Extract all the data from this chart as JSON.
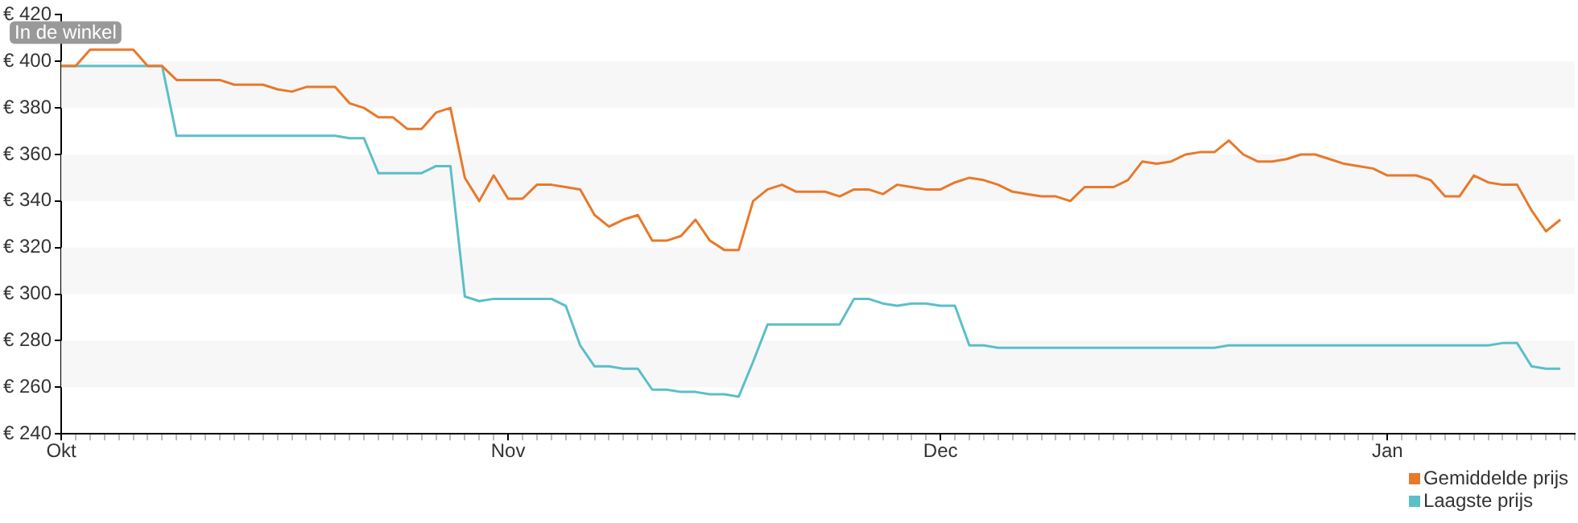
{
  "chart_data": {
    "type": "line",
    "annotations": [
      "In de winkel"
    ],
    "categories": [
      "Okt",
      null,
      null,
      null,
      null,
      null,
      null,
      null,
      null,
      null,
      null,
      null,
      null,
      null,
      null,
      null,
      null,
      null,
      null,
      null,
      null,
      null,
      null,
      null,
      null,
      null,
      null,
      null,
      null,
      null,
      null,
      "Nov",
      null,
      null,
      null,
      null,
      null,
      null,
      null,
      null,
      null,
      null,
      null,
      null,
      null,
      null,
      null,
      null,
      null,
      null,
      null,
      null,
      null,
      null,
      null,
      null,
      null,
      null,
      null,
      null,
      null,
      "Dec",
      null,
      null,
      null,
      null,
      null,
      null,
      null,
      null,
      null,
      null,
      null,
      null,
      null,
      null,
      null,
      null,
      null,
      null,
      null,
      null,
      null,
      null,
      null,
      null,
      null,
      null,
      null,
      null,
      null,
      null,
      "Jan",
      null,
      null,
      null,
      null,
      null,
      null,
      null,
      null,
      null,
      null,
      null,
      null,
      null
    ],
    "ylim": [
      240,
      420
    ],
    "yticks": [
      {
        "value": 240,
        "label": "€ 240"
      },
      {
        "value": 260,
        "label": "€ 260"
      },
      {
        "value": 280,
        "label": "€ 280"
      },
      {
        "value": 300,
        "label": "€ 300"
      },
      {
        "value": 320,
        "label": "€ 320"
      },
      {
        "value": 340,
        "label": "€ 340"
      },
      {
        "value": 360,
        "label": "€ 360"
      },
      {
        "value": 380,
        "label": "€ 380"
      },
      {
        "value": 400,
        "label": "€ 400"
      },
      {
        "value": 420,
        "label": "€ 420"
      }
    ],
    "legend": "bottom right",
    "marker": "none",
    "line_style": "solid",
    "series": [
      {
        "name": "Gemiddelde prijs",
        "color": "#e8792b",
        "values": [
          398,
          398,
          405,
          405,
          405,
          405,
          398,
          398,
          392,
          392,
          392,
          392,
          390,
          390,
          390,
          388,
          387,
          389,
          389,
          389,
          382,
          380,
          376,
          376,
          371,
          371,
          378,
          380,
          350,
          340,
          351,
          341,
          341,
          347,
          347,
          346,
          345,
          334,
          329,
          332,
          334,
          323,
          323,
          325,
          332,
          323,
          319,
          319,
          340,
          345,
          347,
          344,
          344,
          344,
          342,
          345,
          345,
          343,
          347,
          346,
          345,
          345,
          348,
          350,
          349,
          347,
          344,
          343,
          342,
          342,
          340,
          346,
          346,
          346,
          349,
          357,
          356,
          357,
          360,
          361,
          361,
          366,
          360,
          357,
          357,
          358,
          360,
          360,
          358,
          356,
          355,
          354,
          351,
          351,
          351,
          349,
          342,
          342,
          351,
          348,
          347,
          347,
          336,
          327,
          332,
          null
        ]
      },
      {
        "name": "Laagste prijs",
        "color": "#5bbfc8",
        "values": [
          398,
          398,
          398,
          398,
          398,
          398,
          398,
          398,
          368,
          368,
          368,
          368,
          368,
          368,
          368,
          368,
          368,
          368,
          368,
          368,
          367,
          367,
          352,
          352,
          352,
          352,
          355,
          355,
          299,
          297,
          298,
          298,
          298,
          298,
          298,
          295,
          278,
          269,
          269,
          268,
          268,
          259,
          259,
          258,
          258,
          257,
          257,
          256,
          271,
          287,
          287,
          287,
          287,
          287,
          287,
          298,
          298,
          296,
          295,
          296,
          296,
          295,
          295,
          278,
          278,
          277,
          277,
          277,
          277,
          277,
          277,
          277,
          277,
          277,
          277,
          277,
          277,
          277,
          277,
          277,
          277,
          278,
          278,
          278,
          278,
          278,
          278,
          278,
          278,
          278,
          278,
          278,
          278,
          278,
          278,
          278,
          278,
          278,
          278,
          278,
          279,
          279,
          269,
          268,
          268,
          null
        ]
      }
    ]
  }
}
